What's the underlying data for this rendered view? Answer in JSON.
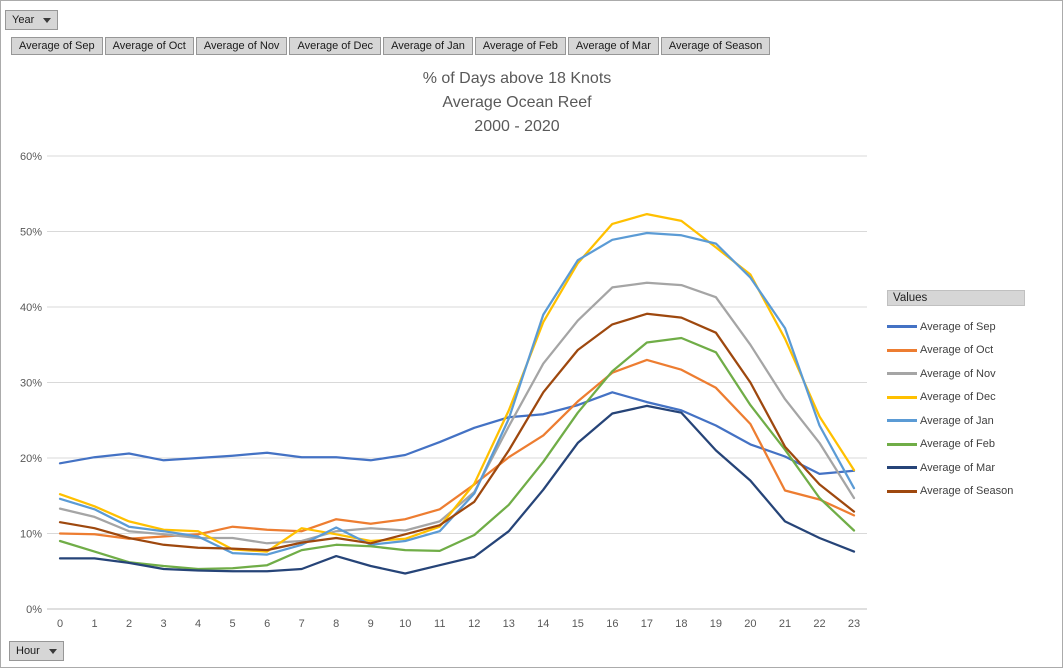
{
  "filters": {
    "year_button": "Year",
    "hour_button": "Hour"
  },
  "field_buttons": [
    "Average of Sep",
    "Average of Oct",
    "Average of Nov",
    "Average of Dec",
    "Average of Jan",
    "Average of Feb",
    "Average of Mar",
    "Average of Season"
  ],
  "title_lines": [
    "% of Days above 18 Knots",
    "Average Ocean Reef",
    "2000 - 2020"
  ],
  "legend": {
    "header": "Values"
  },
  "axes": {
    "y_ticks": [
      "60%",
      "50%",
      "40%",
      "30%",
      "20%",
      "10%",
      "0%"
    ],
    "x_ticks": [
      "0",
      "1",
      "2",
      "3",
      "4",
      "5",
      "6",
      "7",
      "8",
      "9",
      "10",
      "11",
      "12",
      "13",
      "14",
      "15",
      "16",
      "17",
      "18",
      "19",
      "20",
      "21",
      "22",
      "23"
    ]
  },
  "chart_data": {
    "type": "line",
    "title": "% of Days above 18 Knots Average Ocean Reef 2000 - 2020",
    "xlabel": "Hour",
    "ylabel": "",
    "ylim": [
      0,
      60
    ],
    "grid": true,
    "legend_position": "right",
    "x": [
      0,
      1,
      2,
      3,
      4,
      5,
      6,
      7,
      8,
      9,
      10,
      11,
      12,
      13,
      14,
      15,
      16,
      17,
      18,
      19,
      20,
      21,
      22,
      23
    ],
    "series": [
      {
        "name": "Average of Sep",
        "color": "#4472C4",
        "values": [
          19.3,
          20.1,
          20.6,
          19.7,
          20.0,
          20.3,
          20.7,
          20.1,
          20.1,
          19.7,
          20.4,
          22.1,
          24.0,
          25.4,
          25.8,
          27.0,
          28.7,
          27.4,
          26.3,
          24.3,
          21.8,
          20.2,
          17.9,
          18.3
        ]
      },
      {
        "name": "Average of Oct",
        "color": "#ED7D31",
        "values": [
          10.0,
          9.9,
          9.3,
          9.6,
          9.9,
          10.9,
          10.5,
          10.3,
          11.9,
          11.3,
          11.9,
          13.2,
          16.5,
          20.1,
          23.0,
          27.5,
          31.3,
          33.0,
          31.7,
          29.3,
          24.5,
          15.7,
          14.5,
          12.4
        ]
      },
      {
        "name": "Average of Nov",
        "color": "#A5A5A5",
        "values": [
          13.3,
          12.2,
          10.3,
          9.9,
          9.4,
          9.4,
          8.7,
          9.0,
          10.3,
          10.7,
          10.4,
          11.6,
          15.5,
          24.2,
          32.5,
          38.2,
          42.6,
          43.2,
          42.9,
          41.3,
          35.0,
          27.8,
          22.0,
          14.7
        ]
      },
      {
        "name": "Average of Dec",
        "color": "#FFC000",
        "values": [
          15.2,
          13.6,
          11.6,
          10.5,
          10.3,
          7.9,
          7.6,
          10.7,
          9.9,
          9.0,
          9.3,
          10.9,
          16.6,
          26.3,
          38.0,
          45.8,
          51.0,
          52.3,
          51.4,
          47.9,
          44.3,
          35.8,
          25.5,
          18.4
        ]
      },
      {
        "name": "Average of Jan",
        "color": "#5B9BD5",
        "values": [
          14.6,
          13.2,
          10.9,
          10.3,
          9.6,
          7.4,
          7.2,
          8.5,
          10.8,
          8.5,
          9.0,
          10.3,
          15.3,
          25.2,
          39.0,
          46.2,
          48.9,
          49.8,
          49.5,
          48.4,
          43.9,
          37.2,
          24.3,
          16.0
        ]
      },
      {
        "name": "Average of Feb",
        "color": "#70AD47",
        "values": [
          9.0,
          7.6,
          6.2,
          5.7,
          5.3,
          5.4,
          5.8,
          7.8,
          8.5,
          8.3,
          7.8,
          7.7,
          9.8,
          13.8,
          19.5,
          26.0,
          31.5,
          35.3,
          35.9,
          34.0,
          27.0,
          21.1,
          14.7,
          10.4
        ]
      },
      {
        "name": "Average of Mar",
        "color": "#264478",
        "values": [
          6.7,
          6.7,
          6.1,
          5.3,
          5.1,
          5.0,
          5.0,
          5.3,
          7.0,
          5.7,
          4.7,
          5.8,
          6.9,
          10.3,
          15.8,
          22.0,
          25.9,
          26.9,
          26.0,
          21.0,
          17.0,
          11.6,
          9.4,
          7.6
        ]
      },
      {
        "name": "Average of Season",
        "color": "#9E480E",
        "values": [
          11.5,
          10.7,
          9.4,
          8.5,
          8.1,
          8.0,
          7.8,
          8.8,
          9.4,
          8.7,
          9.9,
          11.1,
          14.2,
          21.0,
          28.7,
          34.3,
          37.7,
          39.1,
          38.6,
          36.6,
          30.0,
          21.5,
          16.5,
          12.9
        ]
      }
    ]
  }
}
